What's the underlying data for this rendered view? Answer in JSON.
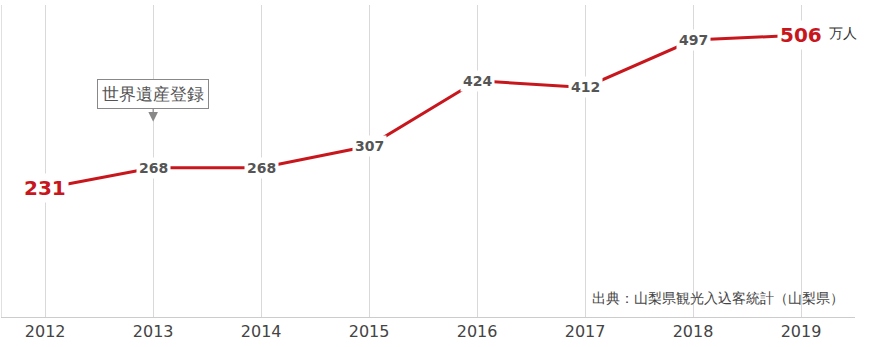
{
  "chart_data": {
    "type": "line",
    "x": [
      2012,
      2013,
      2014,
      2015,
      2016,
      2017,
      2018,
      2019
    ],
    "values": [
      231,
      268,
      268,
      307,
      424,
      412,
      497,
      506
    ],
    "color": "#c8161d",
    "xlim": [
      2011.6,
      2019.5
    ],
    "xticks": [
      2012,
      2013,
      2014,
      2015,
      2016,
      2017,
      2018,
      2019
    ],
    "ylim": [
      0,
      560
    ],
    "grid": true,
    "data_labels": true,
    "tick_labels": "x",
    "annotations": [
      {
        "text": "世界遺産登録",
        "x": 2013
      },
      {
        "text": "万人",
        "x": 2019
      },
      {
        "text": "出典：山梨県観光入込客統計（山梨県）"
      }
    ]
  }
}
